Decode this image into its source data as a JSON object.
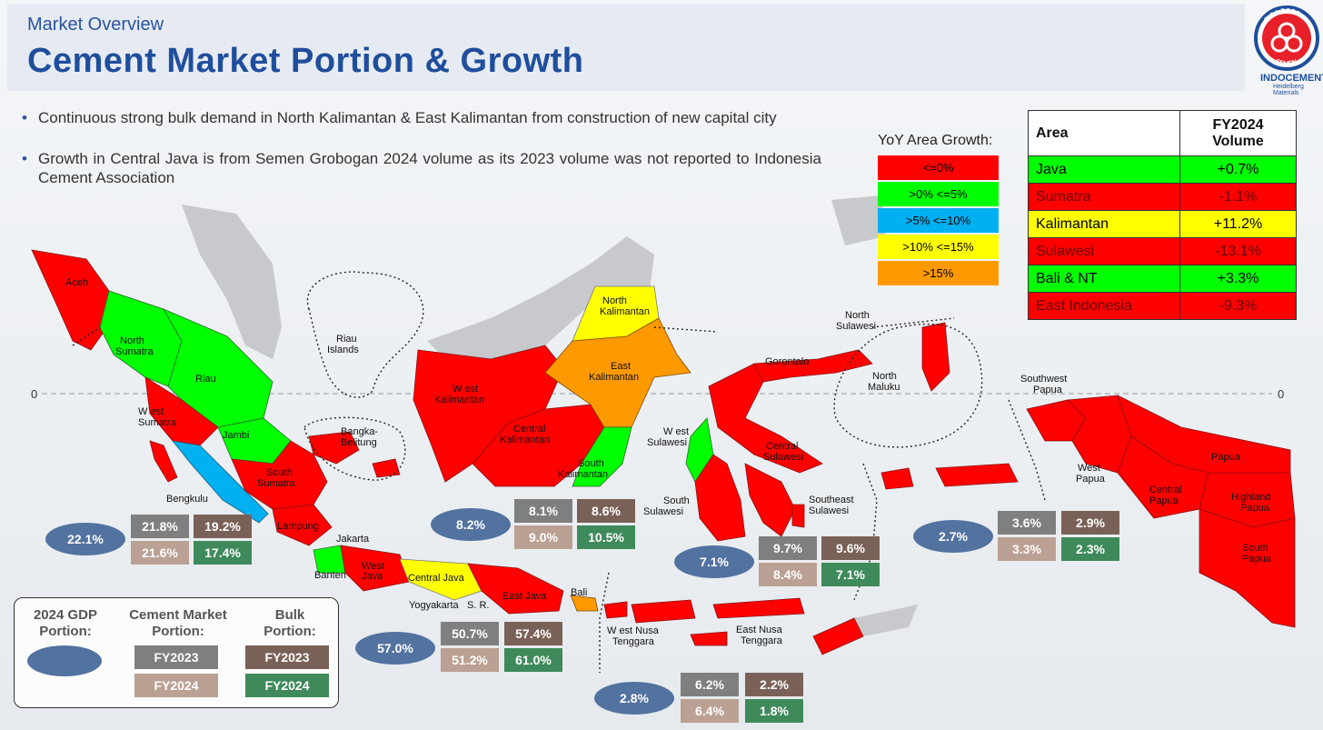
{
  "header": {
    "subtitle": "Market Overview",
    "title": "Cement Market Portion & Growth"
  },
  "logo": {
    "arc_top": "TIGA RODA",
    "arc_bottom": "SEMEN",
    "name": "INDOCEMENT",
    "tagline": "Heidelberg Materials"
  },
  "bullets": [
    "Continuous strong bulk demand in North Kalimantan & East Kalimantan from construction of new capital city",
    "Growth in Central Java is from Semen Grobogan 2024 volume as its 2023 volume was not reported to Indonesia Cement Association"
  ],
  "growth_legend": {
    "title": "YoY Area Growth:",
    "items": [
      {
        "label": "<=0%",
        "color": "#ff0000"
      },
      {
        "label": ">0% <=5%",
        "color": "#00ff00"
      },
      {
        "label": ">5% <=10%",
        "color": "#00b0f0"
      },
      {
        "label": ">10% <=15%",
        "color": "#ffff00"
      },
      {
        "label": ">15%",
        "color": "#ff9900"
      }
    ]
  },
  "volume_table": {
    "col_area": "Area",
    "col_volume_line1": "FY2024",
    "col_volume_line2": "Volume",
    "rows": [
      {
        "area": "Java",
        "value": "+0.7%",
        "color": "g"
      },
      {
        "area": "Sumatra",
        "value": "-1.1%",
        "color": "r"
      },
      {
        "area": "Kalimantan",
        "value": "+11.2%",
        "color": "y"
      },
      {
        "area": "Sulawesi",
        "value": "-13.1%",
        "color": "r"
      },
      {
        "area": "Bali & NT",
        "value": "+3.3%",
        "color": "g"
      },
      {
        "area": "East Indonesia",
        "value": "-9.3%",
        "color": "r"
      }
    ]
  },
  "map": {
    "equator_label": "0",
    "regions": {
      "aceh": "Aceh",
      "north_sumatra_1": "North",
      "north_sumatra_2": "Sumatra",
      "riau": "Riau",
      "riau_islands_1": "Riau",
      "riau_islands_2": "Islands",
      "west_sumatra_1": "W est",
      "west_sumatra_2": "Sumatra",
      "jambi": "Jambi",
      "bangka_1": "Bangka-",
      "bangka_2": "Belitung",
      "south_sumatra_1": "South",
      "south_sumatra_2": "Sumatra",
      "bengkulu": "Bengkulu",
      "lampung": "Lampung",
      "jakarta": "Jakarta",
      "banten": "Banten",
      "west_java_1": "West",
      "west_java_2": "Java",
      "central_java": "Central Java",
      "yogyakarta": "Yogyakarta",
      "east_java": "East Java",
      "sr": "S. R.",
      "bali": "Bali",
      "west_kalimantan_1": "W est",
      "west_kalimantan_2": "Kalimantan",
      "central_kalimantan_1": "Central",
      "central_kalimantan_2": "Kalimantan",
      "north_kalimantan_1": "North",
      "north_kalimantan_2": "Kalimantan",
      "east_kalimantan_1": "East",
      "east_kalimantan_2": "Kalimantan",
      "south_kalimantan_1": "South",
      "south_kalimantan_2": "Kalimantan",
      "west_sulawesi_1": "W est",
      "west_sulawesi_2": "Sulawesi",
      "south_sulawesi_1": "South",
      "south_sulawesi_2": "Sulawesi",
      "north_sulawesi_1": "North",
      "north_sulawesi_2": "Sulawesi",
      "gorontalo": "Gorontalo",
      "central_sulawesi_1": "Central",
      "central_sulawesi_2": "Sulawesi",
      "southeast_sulawesi_1": "Southeast",
      "southeast_sulawesi_2": "Sulawesi",
      "north_maluku_1": "North",
      "north_maluku_2": "Maluku",
      "southwest_papua_1": "Southwest",
      "southwest_papua_2": "Papua",
      "west_papua_1": "West",
      "west_papua_2": "Papua",
      "papua": "Papua",
      "central_papua_1": "Central",
      "central_papua_2": "Papua",
      "highland_papua_1": "Highland",
      "highland_papua_2": "Papua",
      "south_papua_1": "South",
      "south_papua_2": "Papua",
      "wnt_1": "W est Nusa",
      "wnt_2": "Tenggara",
      "ent_1": "East Nusa",
      "ent_2": "Tenggara"
    }
  },
  "data_groups": {
    "sumatra": {
      "gdp": "22.1%",
      "cement_2023": "21.8%",
      "cement_2024": "21.6%",
      "bulk_2023": "19.2%",
      "bulk_2024": "17.4%"
    },
    "kalimantan": {
      "gdp": "8.2%",
      "cement_2023": "8.1%",
      "cement_2024": "9.0%",
      "bulk_2023": "8.6%",
      "bulk_2024": "10.5%"
    },
    "sulawesi": {
      "gdp": "7.1%",
      "cement_2023": "9.7%",
      "cement_2024": "8.4%",
      "bulk_2023": "9.6%",
      "bulk_2024": "7.1%"
    },
    "east_indonesia": {
      "gdp": "2.7%",
      "cement_2023": "3.6%",
      "cement_2024": "3.3%",
      "bulk_2023": "2.9%",
      "bulk_2024": "2.3%"
    },
    "java": {
      "gdp": "57.0%",
      "cement_2023": "50.7%",
      "cement_2024": "51.2%",
      "bulk_2023": "57.4%",
      "bulk_2024": "61.0%"
    },
    "bali_nt": {
      "gdp": "2.8%",
      "cement_2023": "6.2%",
      "cement_2024": "6.4%",
      "bulk_2023": "2.2%",
      "bulk_2024": "1.8%"
    }
  },
  "key_legend": {
    "gdp_line1": "2024 GDP",
    "gdp_line2": "Portion:",
    "cement_line1": "Cement Market",
    "cement_line2": "Portion:",
    "bulk_line1": "Bulk",
    "bulk_line2": "Portion:",
    "fy2023": "FY2023",
    "fy2024": "FY2024"
  },
  "colors": {
    "title_blue": "#1f4e9c",
    "red": "#ff0000",
    "green": "#00ff00",
    "cyan": "#00b0f0",
    "yellow": "#ffff00",
    "orange": "#ff9900",
    "gdp_ellipse": "#5272a0",
    "cement_2023": "#7f7f7f",
    "cement_2024": "#bba193",
    "bulk_2023": "#7a6157",
    "bulk_2024": "#3f8a5b"
  }
}
